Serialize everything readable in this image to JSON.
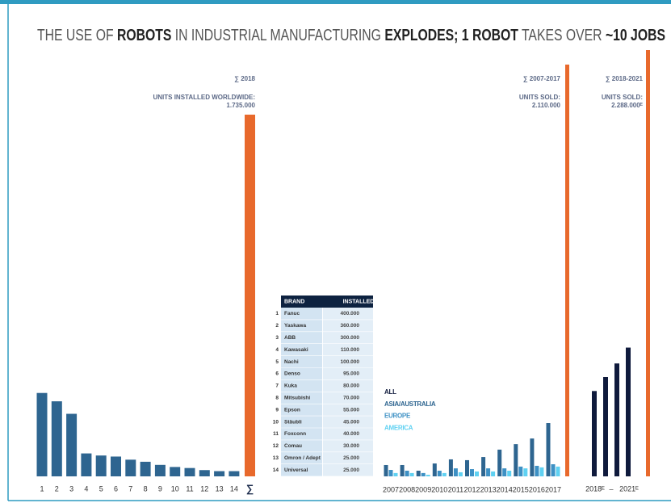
{
  "title": [
    {
      "text": "THE USE OF ",
      "bold": false
    },
    {
      "text": "ROBOTS",
      "bold": true
    },
    {
      "text": " IN INDUSTRIAL MANUFACTURING ",
      "bold": false
    },
    {
      "text": "EXPLODES; 1 ROBOT",
      "bold": true
    },
    {
      "text": " TAKES OVER ",
      "bold": false
    },
    {
      "text": "~10 JOBS",
      "bold": true
    }
  ],
  "chart_data": [
    {
      "type": "bar",
      "annotation": {
        "heading": "∑ 2018",
        "lines": [
          "UNITS INSTALLED WORLDWIDE:",
          "1.735.000"
        ]
      },
      "categories": [
        "1",
        "2",
        "3",
        "4",
        "5",
        "6",
        "7",
        "8",
        "9",
        "10",
        "11",
        "12",
        "13",
        "14"
      ],
      "values": [
        400000,
        360000,
        300000,
        110000,
        100000,
        95000,
        80000,
        70000,
        55000,
        45000,
        40000,
        30000,
        25000,
        25000
      ],
      "color": "#2e6590",
      "total": {
        "category": "∑",
        "value": 1735000,
        "color": "#e8692c"
      },
      "ylim": [
        0,
        1735000
      ]
    },
    {
      "type": "grouped_bar",
      "annotation": {
        "heading": "∑ 2007-2017",
        "lines": [
          "UNITS SOLD:",
          "2.110.000"
        ]
      },
      "categories": [
        "2007",
        "2008",
        "2009",
        "2010",
        "2011",
        "2012",
        "2013",
        "2014",
        "2015",
        "2016",
        "2017"
      ],
      "series": [
        {
          "name": "ASIA/AUSTRALIA",
          "color": "#2e6590",
          "values": [
            58000,
            58000,
            29000,
            66000,
            87000,
            83000,
            99000,
            137000,
            165000,
            194000,
            273000
          ]
        },
        {
          "name": "EUROPE",
          "color": "#3d90c4",
          "values": [
            33000,
            29000,
            17000,
            29000,
            41000,
            37000,
            41000,
            41000,
            50000,
            54000,
            62000
          ]
        },
        {
          "name": "AMERICA",
          "color": "#5fd1f2",
          "values": [
            17000,
            17000,
            8000,
            17000,
            21000,
            25000,
            25000,
            29000,
            41000,
            46000,
            50000
          ]
        }
      ],
      "total": {
        "value": 2110000,
        "color": "#e8692c"
      },
      "ylim": [
        0,
        2110000
      ]
    },
    {
      "type": "bar",
      "annotation": {
        "heading": "∑ 2018-2021",
        "lines": [
          "UNITS SOLD:",
          "2.288.000ᴱ"
        ]
      },
      "categories": [
        "2018ᴱ",
        null,
        null,
        "2021ᴱ"
      ],
      "range_separator": "–",
      "series": [
        {
          "name": "ALL",
          "color": "#0f1a3c",
          "values": [
            458000,
            533000,
            606000,
            691000
          ]
        }
      ],
      "total": {
        "value": 2288000,
        "color": "#e8692c"
      },
      "ylim": [
        0,
        2288000
      ]
    }
  ],
  "table": {
    "header": [
      "BRAND",
      "INSTALLED"
    ],
    "rows": [
      [
        "1",
        "Fanuc",
        "400.000"
      ],
      [
        "2",
        "Yaskawa",
        "360.000"
      ],
      [
        "3",
        "ABB",
        "300.000"
      ],
      [
        "4",
        "Kawasaki",
        "110.000"
      ],
      [
        "5",
        "Nachi",
        "100.000"
      ],
      [
        "6",
        "Denso",
        "95.000"
      ],
      [
        "7",
        "Kuka",
        "80.000"
      ],
      [
        "8",
        "Mitsubishi",
        "70.000"
      ],
      [
        "9",
        "Epson",
        "55.000"
      ],
      [
        "10",
        "Stäubli",
        "45.000"
      ],
      [
        "11",
        "Foxconn",
        "40.000"
      ],
      [
        "12",
        "Comau",
        "30.000"
      ],
      [
        "13",
        "Omron / Adept",
        "25.000"
      ],
      [
        "14",
        "Universal",
        "25.000"
      ]
    ]
  }
}
